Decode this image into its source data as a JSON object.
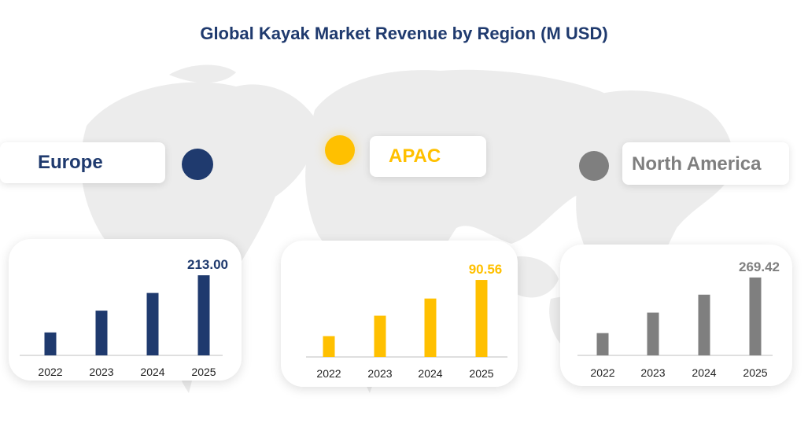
{
  "title": "Global Kayak Market Revenue by Region (M USD)",
  "colors": {
    "title": "#1f3a6e",
    "europe": "#1f3a6e",
    "apac": "#ffc000",
    "north_america": "#7f7f7f",
    "map": "#ececec",
    "axis": "#bfbfbf",
    "tick_text": "#222222"
  },
  "chart_data": [
    {
      "type": "bar",
      "region": "Europe",
      "categories": [
        "2022",
        "2023",
        "2024",
        "2025"
      ],
      "values": [
        61.0,
        119.0,
        166.0,
        213.0
      ],
      "value_labels": [
        "",
        "",
        "",
        "213.00"
      ],
      "ylim": [
        0,
        230
      ],
      "color_key": "europe"
    },
    {
      "type": "bar",
      "region": "APAC",
      "categories": [
        "2022",
        "2023",
        "2024",
        "2025"
      ],
      "values": [
        24.5,
        48.5,
        68.7,
        90.56
      ],
      "value_labels": [
        "",
        "",
        "",
        "90.56"
      ],
      "ylim": [
        0,
        98
      ],
      "color_key": "apac"
    },
    {
      "type": "bar",
      "region": "North America",
      "categories": [
        "2022",
        "2023",
        "2024",
        "2025"
      ],
      "values": [
        77.0,
        148.0,
        210.0,
        269.42
      ],
      "value_labels": [
        "",
        "",
        "",
        "269.42"
      ],
      "ylim": [
        0,
        291
      ],
      "color_key": "north_america"
    }
  ]
}
